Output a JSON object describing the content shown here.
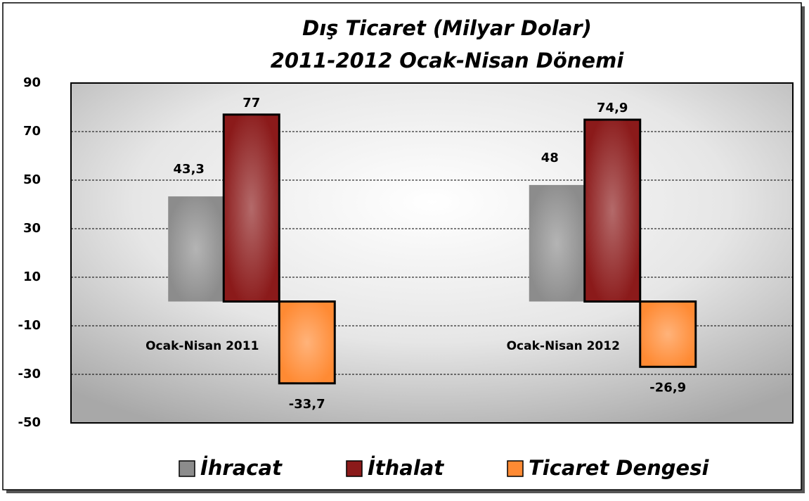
{
  "chart_data": {
    "type": "bar",
    "title": "Dış Ticaret (Milyar Dolar)",
    "subtitle": "2011-2012 Ocak-Nisan Dönemi",
    "categories": [
      "Ocak-Nisan 2011",
      "Ocak-Nisan 2012"
    ],
    "series": [
      {
        "name": "İhracat",
        "color": "#8c8c8c",
        "values": [
          43.3,
          48
        ],
        "value_labels": [
          "43,3",
          "48"
        ]
      },
      {
        "name": "İthalat",
        "color": "#8b1a1a",
        "values": [
          77,
          74.9
        ],
        "value_labels": [
          "77",
          "74,9"
        ]
      },
      {
        "name": "Ticaret Dengesi",
        "color": "#ff8a33",
        "values": [
          -33.7,
          -26.9
        ],
        "value_labels": [
          "-33,7",
          "-26,9"
        ]
      }
    ],
    "ylim": [
      -50,
      90
    ],
    "yticks": [
      90,
      70,
      50,
      30,
      10,
      -10,
      -30,
      -50
    ],
    "grid": true
  }
}
